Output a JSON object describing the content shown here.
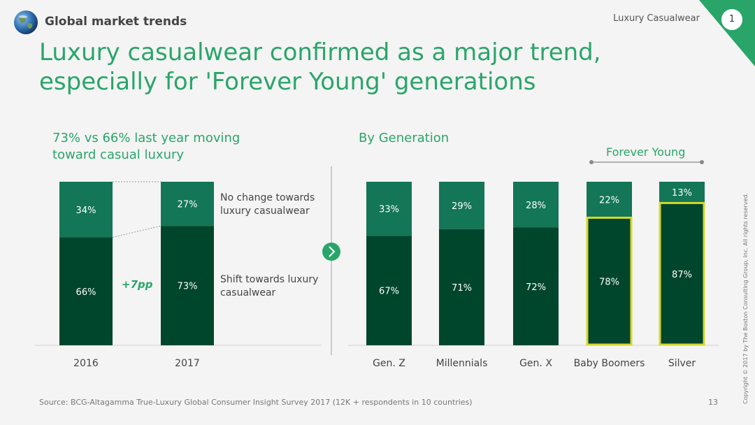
{
  "header": {
    "title": "Global market trends",
    "section": "Luxury Casualwear",
    "section_number": "1"
  },
  "title": "Luxury casualwear confirmed as a major trend, especially for 'Forever Young' generations",
  "left_panel": {
    "subtitle": "73% vs 66% last year moving toward casual luxury",
    "legend_top": "No change towards luxury casualwear",
    "legend_bottom": "Shift towards luxury casualwear",
    "delta": "+7pp"
  },
  "right_panel": {
    "subtitle": "By Generation",
    "bracket_label": "Forever Young"
  },
  "footer": {
    "source": "Source: BCG-Altagamma True-Luxury Global Consumer Insight Survey 2017 (12K + respondents in 10 countries)",
    "page": "13",
    "copyright": "Copyright © 2017 by The Boston Consulting Group, Inc. All rights reserved."
  },
  "colors": {
    "accent": "#2aa56a",
    "shift": "#00462c",
    "no_change": "#137656",
    "highlight": "#d7d72b"
  },
  "chart_data": [
    {
      "type": "bar",
      "stacked": true,
      "categories": [
        "2016",
        "2017"
      ],
      "series": [
        {
          "name": "Shift towards luxury casualwear",
          "values": [
            66,
            73
          ],
          "labels": [
            "66%",
            "73%"
          ]
        },
        {
          "name": "No change towards luxury casualwear",
          "values": [
            34,
            27
          ],
          "labels": [
            "34%",
            "27%"
          ]
        }
      ],
      "ylim": [
        0,
        100
      ]
    },
    {
      "type": "bar",
      "stacked": true,
      "categories": [
        "Gen. Z",
        "Millennials",
        "Gen. X",
        "Baby Boomers",
        "Silver"
      ],
      "series": [
        {
          "name": "Shift towards luxury casualwear",
          "values": [
            67,
            71,
            72,
            78,
            87
          ],
          "labels": [
            "67%",
            "71%",
            "72%",
            "78%",
            "87%"
          ]
        },
        {
          "name": "No change towards luxury casualwear",
          "values": [
            33,
            29,
            28,
            22,
            13
          ],
          "labels": [
            "33%",
            "29%",
            "28%",
            "22%",
            "13%"
          ]
        }
      ],
      "highlighted": [
        "Baby Boomers",
        "Silver"
      ],
      "ylim": [
        0,
        100
      ]
    }
  ]
}
